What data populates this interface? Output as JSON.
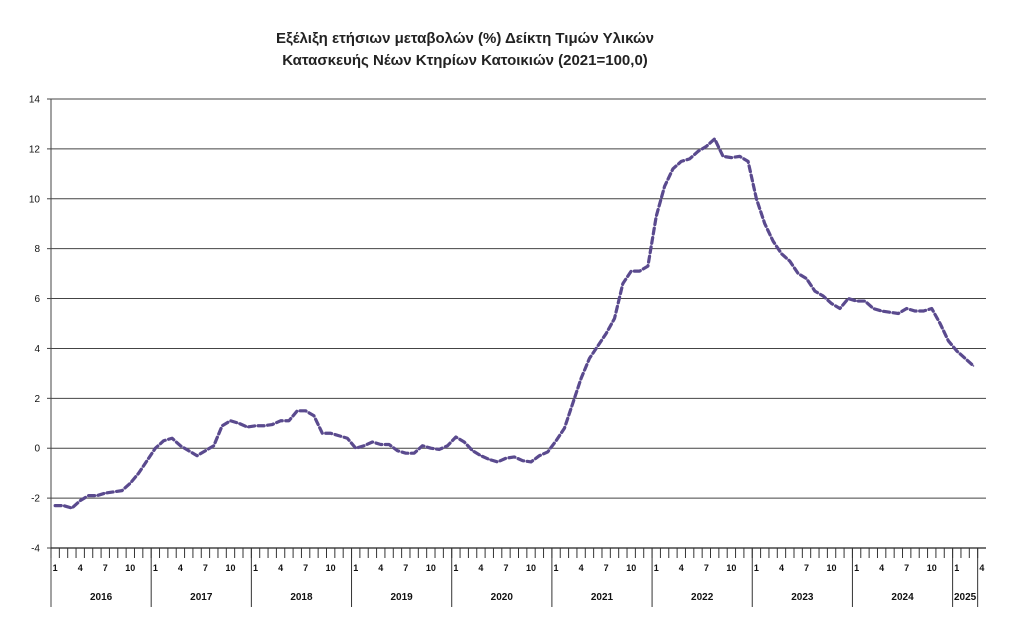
{
  "chart_data": {
    "type": "line",
    "title": "Εξέλιξη ετήσιων μεταβολών (%) Δείκτη Τιμών Υλικών",
    "subtitle": "Κατασκευής Νέων Κτηρίων Κατοικιών (2021=100,0)",
    "xlabel": "",
    "ylabel": "",
    "ylim": [
      -4,
      14
    ],
    "yticks": [
      -4,
      -2,
      0,
      2,
      4,
      6,
      8,
      10,
      12,
      14
    ],
    "grid": true,
    "legend": "none",
    "line_color": "#5a4a8e",
    "line_style": "dashed",
    "years": [
      "2016",
      "2017",
      "2018",
      "2019",
      "2020",
      "2021",
      "2022",
      "2023",
      "2024",
      "2025"
    ],
    "month_tick_labels": [
      "1",
      "4",
      "7",
      "10"
    ],
    "month_ticks_last_year": [
      "1",
      "4"
    ],
    "series": [
      {
        "values": [
          -2.3,
          -2.3,
          -2.4,
          -2.1,
          -1.9,
          -1.9,
          -1.8,
          -1.75,
          -1.7,
          -1.4,
          -1.0,
          -0.5,
          0.0,
          0.3,
          0.4,
          0.1,
          -0.1,
          -0.3,
          -0.1,
          0.1,
          0.9,
          1.1,
          1.0,
          0.85,
          0.9,
          0.9,
          0.95,
          1.1,
          1.1,
          1.5,
          1.5,
          1.3,
          0.6,
          0.6,
          0.5,
          0.4,
          0.0,
          0.1,
          0.25,
          0.15,
          0.15,
          -0.1,
          -0.2,
          -0.2,
          0.1,
          0.0,
          -0.05,
          0.1,
          0.45,
          0.25,
          -0.1,
          -0.3,
          -0.45,
          -0.55,
          -0.4,
          -0.35,
          -0.5,
          -0.55,
          -0.3,
          -0.15,
          0.3,
          0.8,
          1.8,
          2.8,
          3.6,
          4.1,
          4.6,
          5.2,
          6.6,
          7.1,
          7.1,
          7.3,
          9.3,
          10.5,
          11.2,
          11.5,
          11.6,
          11.9,
          12.1,
          12.4,
          11.7,
          11.65,
          11.7,
          11.5,
          10.0,
          9.0,
          8.3,
          7.8,
          7.5,
          7.0,
          6.8,
          6.3,
          6.1,
          5.8,
          5.6,
          6.0,
          5.9,
          5.9,
          5.6,
          5.5,
          5.45,
          5.4,
          5.6,
          5.5,
          5.5,
          5.6,
          5.0,
          4.3,
          3.9,
          3.6,
          3.3
        ]
      }
    ]
  }
}
